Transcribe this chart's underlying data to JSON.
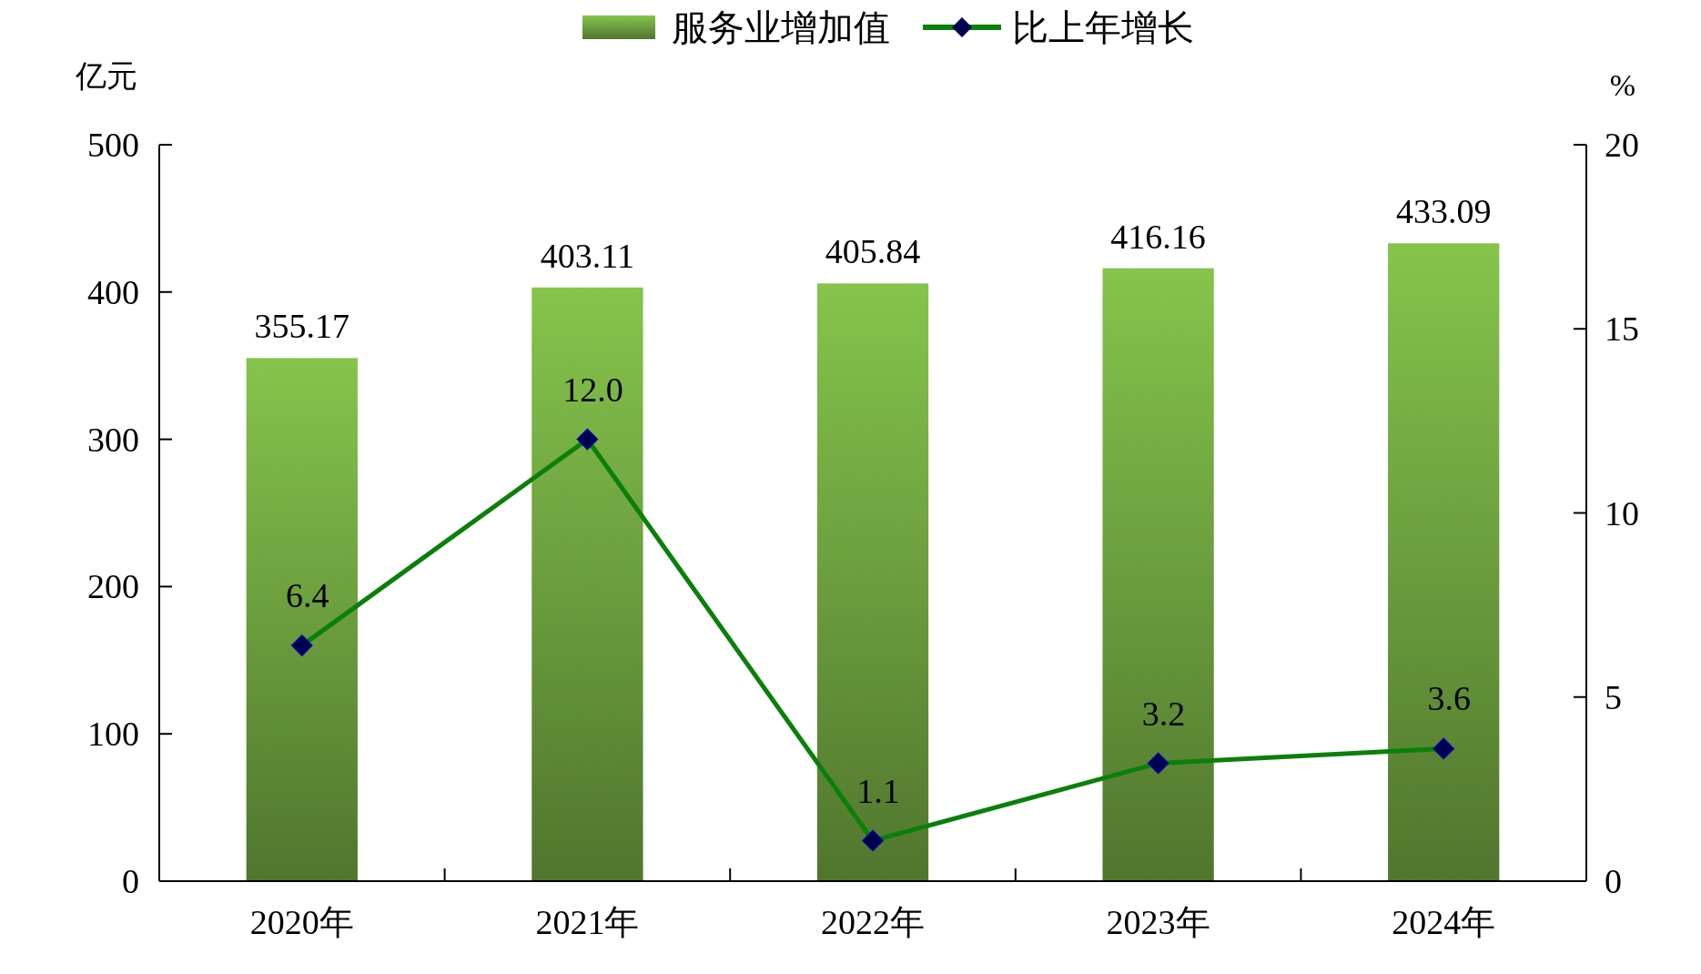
{
  "chart_data": {
    "type": "bar",
    "categories": [
      "2020年",
      "2021年",
      "2022年",
      "2023年",
      "2024年"
    ],
    "series": [
      {
        "name": "服务业增加值",
        "color": "#86c44c",
        "values": [
          355.17,
          403.11,
          405.84,
          416.16,
          433.09
        ]
      },
      {
        "name": "比上年增长",
        "type": "line",
        "axis": "y2",
        "color": "#0a800a",
        "marker": "diamond",
        "values": [
          6.4,
          12.0,
          1.1,
          3.2,
          3.6
        ],
        "value_labels": [
          "6.4",
          "12.0",
          "1.1",
          "3.2",
          "3.6"
        ]
      }
    ],
    "ylabel": "亿元",
    "y2label": "%",
    "ylim": [
      0,
      500
    ],
    "yticks": [
      0,
      100,
      200,
      300,
      400,
      500
    ],
    "y2lim": [
      0,
      20
    ],
    "y2ticks": [
      0,
      5,
      10,
      15,
      20
    ],
    "data_labels": true,
    "legend": "top",
    "grid": false
  }
}
